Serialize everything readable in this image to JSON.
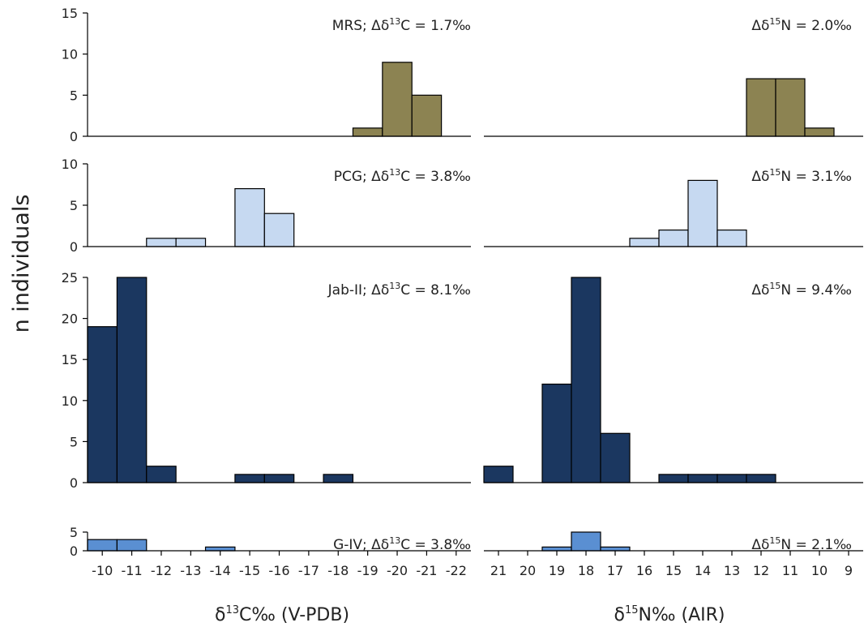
{
  "axes": {
    "y_title": "n individuals",
    "x_title_left": {
      "pre": "δ",
      "sup": "13",
      "rest": "C‰ (V-PDB)"
    },
    "x_title_right": {
      "pre": "δ",
      "sup": "15",
      "rest": "N‰ (AIR)"
    }
  },
  "chart_data": [
    {
      "type": "bar",
      "annotation": {
        "pre": "MRS; Δδ",
        "sup": "13",
        "rest": "C = 1.7‰"
      },
      "x": [
        -19,
        -20,
        -21
      ],
      "values": [
        1,
        9,
        5
      ],
      "color": "#8c8352",
      "xlim": [
        -9.5,
        -22.5
      ],
      "ylim": [
        0,
        15
      ],
      "yticks": [
        0,
        5,
        10,
        15
      ]
    },
    {
      "type": "bar",
      "annotation": {
        "pre": "Δδ",
        "sup": "15",
        "rest": "N = 2.0‰"
      },
      "x": [
        12,
        11,
        10
      ],
      "values": [
        7,
        7,
        1
      ],
      "color": "#8c8352",
      "xlim": [
        21.5,
        8.5
      ],
      "ylim": [
        0,
        15
      ]
    },
    {
      "type": "bar",
      "annotation": {
        "pre": "PCG; Δδ",
        "sup": "13",
        "rest": "C = 3.8‰"
      },
      "x": [
        -12,
        -13,
        -15,
        -16
      ],
      "values": [
        1,
        1,
        7,
        4
      ],
      "color": "#c6d9f1",
      "xlim": [
        -9.5,
        -22.5
      ],
      "ylim": [
        0,
        10
      ],
      "yticks": [
        0,
        5,
        10
      ]
    },
    {
      "type": "bar",
      "annotation": {
        "pre": "Δδ",
        "sup": "15",
        "rest": "N = 3.1‰"
      },
      "x": [
        16,
        15,
        14,
        13
      ],
      "values": [
        1,
        2,
        8,
        2
      ],
      "color": "#c6d9f1",
      "xlim": [
        21.5,
        8.5
      ],
      "ylim": [
        0,
        10
      ]
    },
    {
      "type": "bar",
      "annotation": {
        "pre": "Jab-II; Δδ",
        "sup": "13",
        "rest": "C = 8.1‰"
      },
      "x": [
        -10,
        -11,
        -12,
        -15,
        -16,
        -18
      ],
      "values": [
        19,
        25,
        2,
        1,
        1,
        1
      ],
      "color": "#1b3760",
      "xlim": [
        -9.5,
        -22.5
      ],
      "ylim": [
        0,
        25
      ],
      "yticks": [
        0,
        5,
        10,
        15,
        20,
        25
      ]
    },
    {
      "type": "bar",
      "annotation": {
        "pre": "Δδ",
        "sup": "15",
        "rest": "N = 9.4‰"
      },
      "x": [
        21,
        19,
        18,
        17,
        15,
        14,
        13,
        12
      ],
      "values": [
        2,
        12,
        25,
        6,
        1,
        1,
        1,
        1
      ],
      "color": "#1b3760",
      "xlim": [
        21.5,
        8.5
      ],
      "ylim": [
        0,
        25
      ]
    },
    {
      "type": "bar",
      "annotation": {
        "pre": "G-IV; Δδ",
        "sup": "13",
        "rest": "C = 3.8‰"
      },
      "x": [
        -10,
        -11,
        -14
      ],
      "values": [
        3,
        3,
        1
      ],
      "color": "#5a8fd2",
      "xlim": [
        -9.5,
        -22.5
      ],
      "ylim": [
        0,
        5
      ],
      "yticks": [
        0,
        5
      ],
      "xticks": [
        -10,
        -11,
        -12,
        -13,
        -14,
        -15,
        -16,
        -17,
        -18,
        -19,
        -20,
        -21,
        -22
      ]
    },
    {
      "type": "bar",
      "annotation": {
        "pre": "Δδ",
        "sup": "15",
        "rest": "N = 2.1‰"
      },
      "x": [
        19,
        18,
        17
      ],
      "values": [
        1,
        5,
        1
      ],
      "color": "#5a8fd2",
      "xlim": [
        21.5,
        8.5
      ],
      "ylim": [
        0,
        5
      ],
      "xticks": [
        21,
        20,
        19,
        18,
        17,
        16,
        15,
        14,
        13,
        12,
        11,
        10,
        9
      ]
    }
  ]
}
